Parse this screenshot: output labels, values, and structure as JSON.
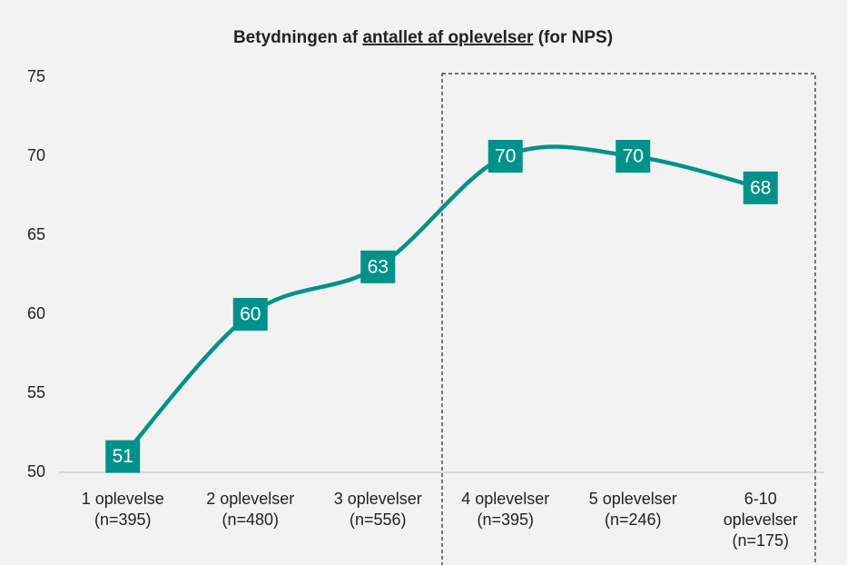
{
  "chart_data": {
    "type": "line",
    "title": [
      "Betydningen af",
      "antallet af oplevelser",
      "(for NPS)"
    ],
    "categories": [
      [
        "1 oplevelse",
        "(n=395)"
      ],
      [
        "2 oplevelser",
        "(n=480)"
      ],
      [
        "3 oplevelser",
        "(n=556)"
      ],
      [
        "4 oplevelser",
        "(n=395)"
      ],
      [
        "5 oplevelser",
        "(n=246)"
      ],
      [
        "6-10",
        "oplevelser",
        "(n=175)"
      ]
    ],
    "values": [
      51,
      60,
      63,
      70,
      70,
      68
    ],
    "color": "#00928a",
    "ylim": [
      50,
      75
    ],
    "yticks": [
      50,
      55,
      60,
      65,
      70,
      75
    ],
    "grid": false
  }
}
